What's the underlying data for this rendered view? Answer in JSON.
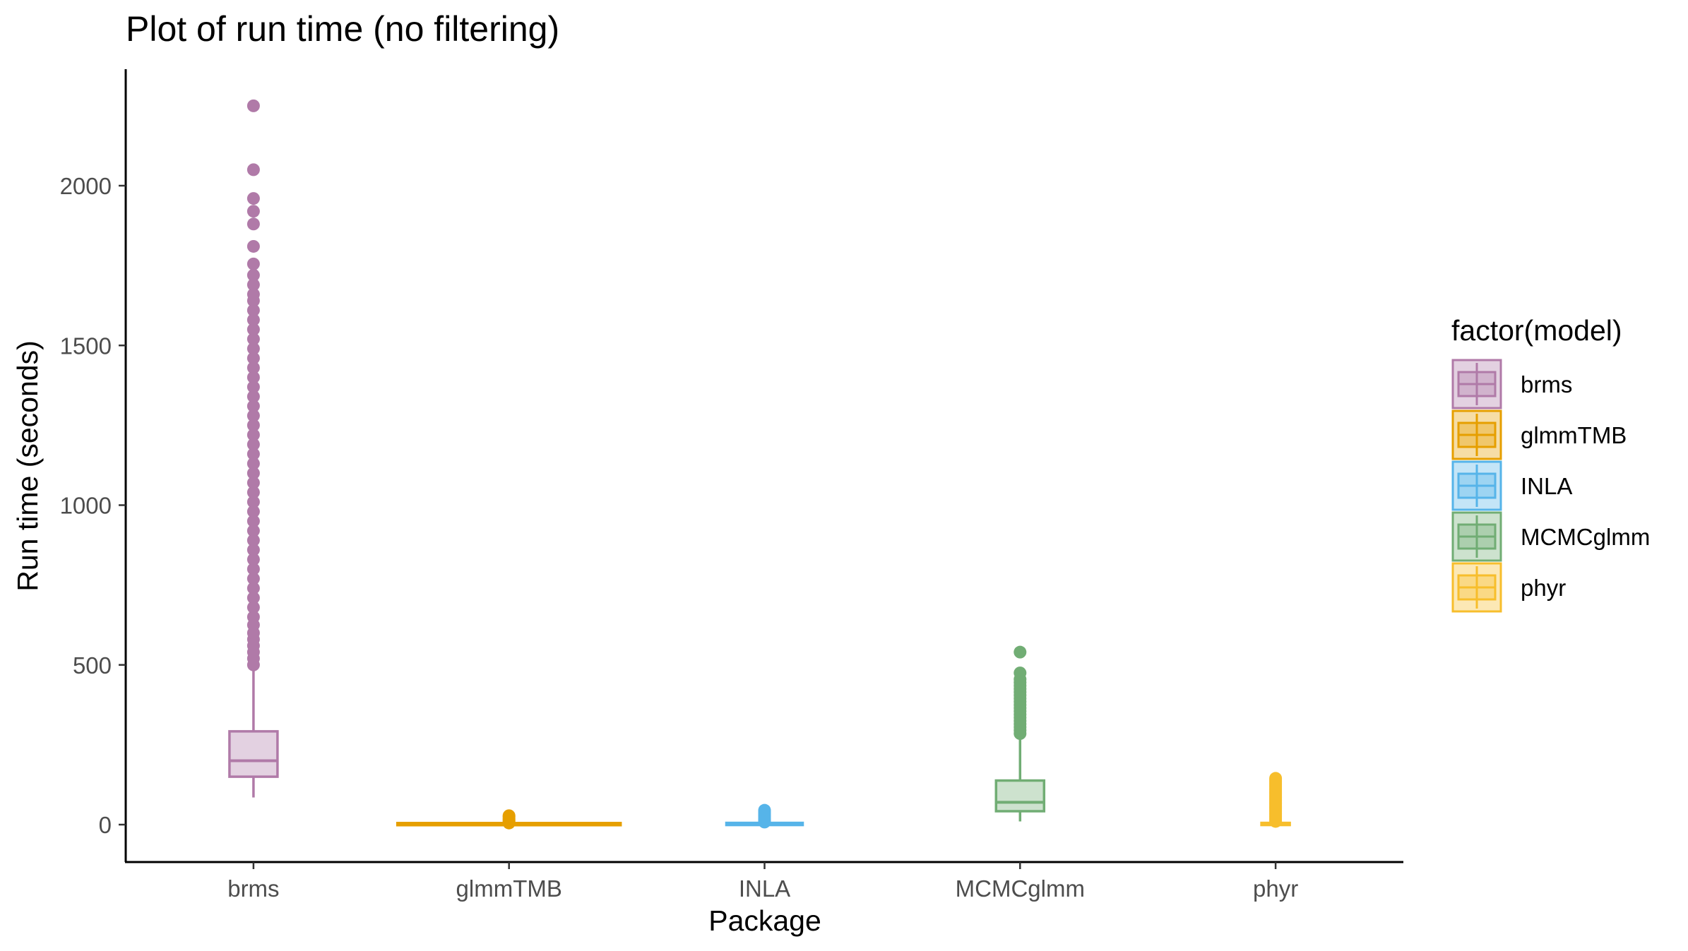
{
  "chart_data": {
    "type": "boxplot",
    "title": "Plot of run time (no filtering)",
    "xlabel": "Package",
    "ylabel": "Run time (seconds)",
    "ylim": [
      -110,
      2360
    ],
    "yticks": [
      0,
      500,
      1000,
      1500,
      2000
    ],
    "grid": false,
    "legend": {
      "title": "factor(model)",
      "position": "right"
    },
    "categories": [
      "brms",
      "glmmTMB",
      "INLA",
      "MCMCglmm",
      "phyr"
    ],
    "series": [
      {
        "name": "brms",
        "color": "#B07AA8",
        "lower_whisker": 85,
        "q1": 150,
        "median": 200,
        "q3": 292,
        "upper_whisker": 495,
        "outliers": [
          500,
          520,
          540,
          560,
          580,
          600,
          625,
          650,
          680,
          710,
          740,
          770,
          800,
          830,
          860,
          890,
          920,
          950,
          980,
          1010,
          1040,
          1070,
          1100,
          1130,
          1160,
          1190,
          1220,
          1250,
          1280,
          1310,
          1340,
          1370,
          1400,
          1430,
          1460,
          1490,
          1520,
          1550,
          1580,
          1610,
          1640,
          1660,
          1690,
          1720,
          1755,
          1810,
          1880,
          1920,
          1960,
          2050,
          2250
        ]
      },
      {
        "name": "glmmTMB",
        "color": "#E69F00",
        "lower_whisker": 0,
        "q1": 0.5,
        "median": 1,
        "q3": 2,
        "upper_whisker": 4,
        "outliers": [
          5,
          8,
          12,
          16,
          20,
          25,
          28
        ]
      },
      {
        "name": "INLA",
        "color": "#56B4E9",
        "lower_whisker": 0,
        "q1": 1,
        "median": 2,
        "q3": 3,
        "upper_whisker": 6,
        "outliers": [
          8,
          12,
          16,
          20,
          25,
          30,
          35,
          40,
          45
        ]
      },
      {
        "name": "MCMCglmm",
        "color": "#71AD74",
        "lower_whisker": 10,
        "q1": 42,
        "median": 70,
        "q3": 138,
        "upper_whisker": 280,
        "outliers": [
          285,
          295,
          305,
          315,
          325,
          335,
          345,
          355,
          365,
          375,
          385,
          395,
          405,
          415,
          425,
          435,
          445,
          455,
          475,
          540
        ]
      },
      {
        "name": "phyr",
        "color": "#F7BE2C",
        "lower_whisker": 0,
        "q1": 1,
        "median": 2,
        "q3": 4,
        "upper_whisker": 8,
        "outliers": [
          10,
          15,
          20,
          25,
          30,
          35,
          40,
          45,
          50,
          55,
          60,
          65,
          70,
          75,
          80,
          85,
          90,
          95,
          100,
          105,
          110,
          115,
          120,
          125,
          130,
          135,
          140,
          145
        ]
      }
    ]
  }
}
